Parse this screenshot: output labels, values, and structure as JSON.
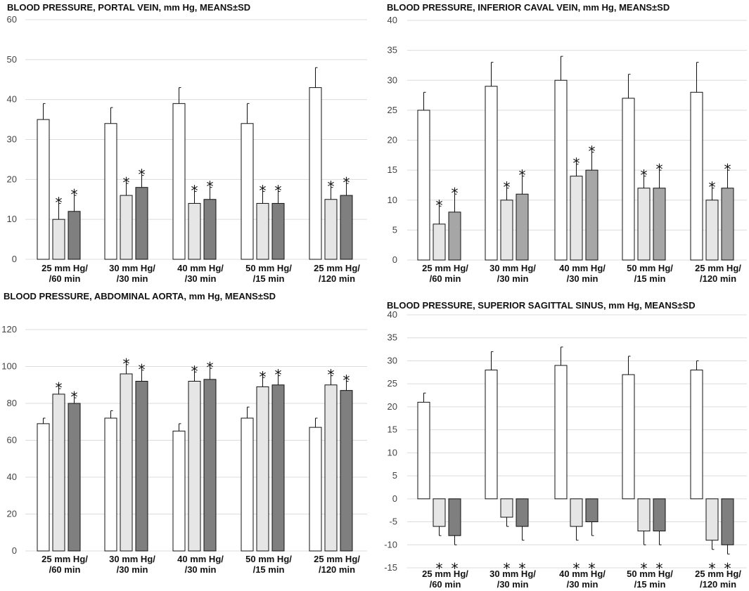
{
  "chart_data": [
    {
      "type": "bar",
      "title": "BLOOD PRESSURE, PORTAL VEIN, mm Hg, MEANS±SD",
      "categories": [
        [
          "25 mm Hg/",
          "/60 min"
        ],
        [
          "30 mm Hg/",
          "/30 min"
        ],
        [
          "40 mm Hg/",
          "/30 min"
        ],
        [
          "50 mm Hg/",
          "/15 min"
        ],
        [
          "25 mm Hg/",
          "/120 min"
        ]
      ],
      "ylim": [
        0,
        60
      ],
      "yticks": [
        0,
        10,
        20,
        30,
        40,
        50,
        60
      ],
      "series": [
        {
          "color": "#ffffff",
          "values": [
            35,
            34,
            39,
            34,
            43
          ],
          "sd": [
            4,
            4,
            4,
            5,
            5
          ],
          "stars": [
            false,
            false,
            false,
            false,
            false
          ]
        },
        {
          "color": "#e6e6e6",
          "values": [
            10,
            16,
            14,
            14,
            15
          ],
          "sd": [
            4,
            3,
            3,
            3,
            3
          ],
          "stars": [
            true,
            true,
            true,
            true,
            true
          ]
        },
        {
          "color": "#7f7f7f",
          "values": [
            12,
            18,
            15,
            14,
            16
          ],
          "sd": [
            4,
            3,
            3,
            3,
            3
          ],
          "stars": [
            true,
            true,
            true,
            true,
            true
          ]
        }
      ],
      "star_label": "*"
    },
    {
      "type": "bar",
      "title": "BLOOD PRESSURE, INFERIOR CAVAL VEIN, mm Hg, MEANS±SD",
      "categories": [
        [
          "25 mm Hg/",
          "/60 min"
        ],
        [
          "30 mm Hg/",
          "/30 min"
        ],
        [
          "40 mm Hg/",
          "/30 min"
        ],
        [
          "50 mm Hg/",
          "/15 min"
        ],
        [
          "25 mm Hg/",
          "/120 min"
        ]
      ],
      "ylim": [
        0,
        40
      ],
      "yticks": [
        0,
        5,
        10,
        15,
        20,
        25,
        30,
        35,
        40
      ],
      "series": [
        {
          "color": "#ffffff",
          "values": [
            25,
            29,
            30,
            27,
            28
          ],
          "sd": [
            3,
            4,
            4,
            4,
            5
          ],
          "stars": [
            false,
            false,
            false,
            false,
            false
          ]
        },
        {
          "color": "#e6e6e6",
          "values": [
            6,
            10,
            14,
            12,
            10
          ],
          "sd": [
            3,
            2,
            2,
            2,
            2
          ],
          "stars": [
            true,
            true,
            true,
            true,
            true
          ]
        },
        {
          "color": "#a6a6a6",
          "values": [
            8,
            11,
            15,
            12,
            12
          ],
          "sd": [
            3,
            3,
            3,
            3,
            3
          ],
          "stars": [
            true,
            true,
            true,
            true,
            true
          ]
        }
      ],
      "star_label": "*"
    },
    {
      "type": "bar",
      "title": "BLOOD PRESSURE, ABDOMINAL AORTA, mm Hg, MEANS±SD",
      "categories": [
        [
          "25 mm Hg/",
          "/60 min"
        ],
        [
          "30 mm Hg/",
          "/30 min"
        ],
        [
          "40 mm Hg/",
          "/30 min"
        ],
        [
          "50 mm Hg/",
          "/15 min"
        ],
        [
          "25 mm Hg/",
          "/120 min"
        ]
      ],
      "ylim": [
        0,
        120
      ],
      "yticks": [
        0,
        20,
        40,
        60,
        80,
        100,
        120
      ],
      "series": [
        {
          "color": "#ffffff",
          "values": [
            69,
            72,
            65,
            72,
            67
          ],
          "sd": [
            3,
            4,
            4,
            6,
            5
          ],
          "stars": [
            false,
            false,
            false,
            false,
            false
          ]
        },
        {
          "color": "#e6e6e6",
          "values": [
            85,
            96,
            92,
            89,
            90
          ],
          "sd": [
            3,
            5,
            5,
            5,
            5
          ],
          "stars": [
            true,
            true,
            true,
            true,
            true
          ]
        },
        {
          "color": "#7f7f7f",
          "values": [
            80,
            92,
            93,
            90,
            87
          ],
          "sd": [
            3,
            6,
            6,
            5,
            5
          ],
          "stars": [
            true,
            true,
            true,
            true,
            true
          ]
        }
      ],
      "star_label": "*"
    },
    {
      "type": "bar",
      "title": "BLOOD PRESSURE, SUPERIOR SAGITTAL SINUS, mm Hg, MEANS±SD",
      "categories": [
        [
          "25 mm Hg/",
          "/60 min"
        ],
        [
          "30 mm Hg/",
          "/30 min"
        ],
        [
          "40 mm Hg/",
          "/30 min"
        ],
        [
          "50 mm Hg/",
          "/15 min"
        ],
        [
          "25 mm Hg/",
          "/120 min"
        ]
      ],
      "ylim": [
        -15,
        40
      ],
      "yticks": [
        -15,
        -10,
        -5,
        0,
        5,
        10,
        15,
        20,
        25,
        30,
        35,
        40
      ],
      "series": [
        {
          "color": "#ffffff",
          "values": [
            21,
            28,
            29,
            27,
            28
          ],
          "sd": [
            2,
            4,
            4,
            4,
            2
          ],
          "stars": [
            false,
            false,
            false,
            false,
            false
          ]
        },
        {
          "color": "#e6e6e6",
          "values": [
            -6,
            -4,
            -6,
            -7,
            -9
          ],
          "sd": [
            2,
            2,
            3,
            3,
            2
          ],
          "stars": [
            true,
            true,
            true,
            true,
            true
          ]
        },
        {
          "color": "#7f7f7f",
          "values": [
            -8,
            -6,
            -5,
            -7,
            -10
          ],
          "sd": [
            2,
            3,
            3,
            3,
            2
          ],
          "stars": [
            true,
            true,
            true,
            true,
            true
          ]
        }
      ],
      "star_label": "*"
    }
  ]
}
